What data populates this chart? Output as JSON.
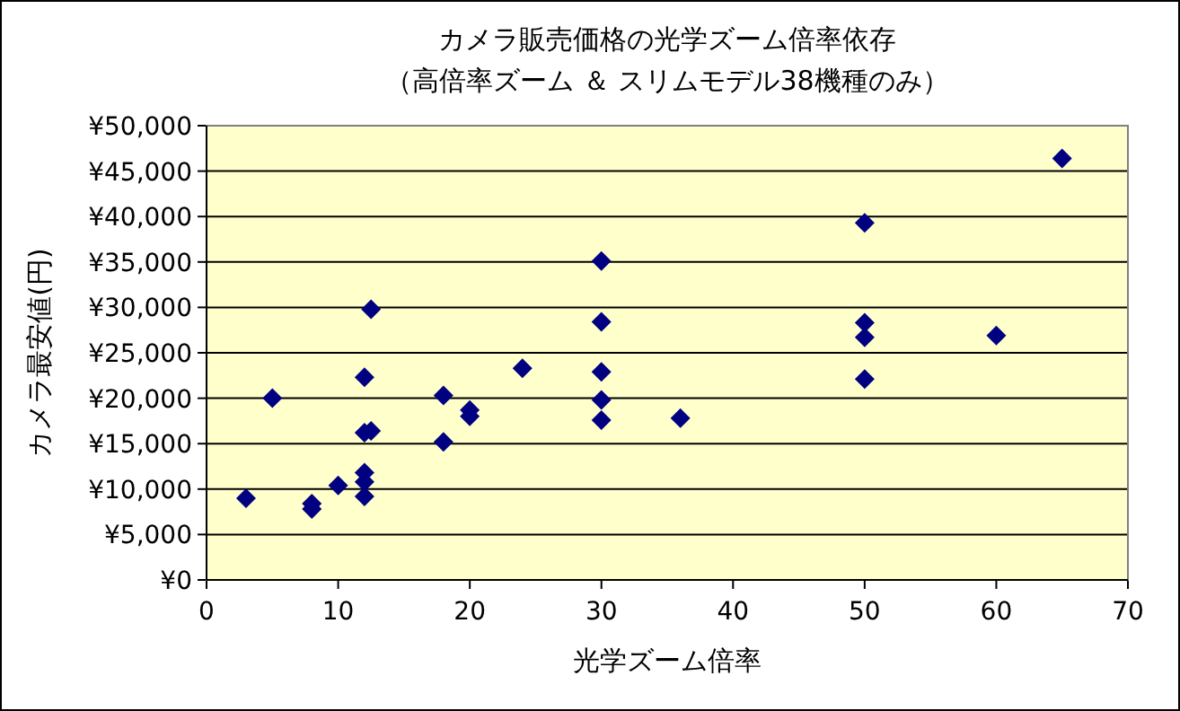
{
  "chart_data": {
    "type": "scatter",
    "title": "カメラ販売価格の光学ズーム倍率依存",
    "subtitle": "（高倍率ズーム ＆ スリムモデル38機種のみ）",
    "xlabel": "光学ズーム倍率",
    "ylabel": "カメラ最安値(円)",
    "x": [
      3,
      5,
      8,
      8,
      10,
      12,
      12,
      12,
      12,
      12.5,
      12,
      12.5,
      18,
      18,
      20,
      20,
      24,
      30,
      30,
      30,
      30,
      30,
      36,
      50,
      50,
      50,
      50,
      60,
      65
    ],
    "values": [
      9000,
      20000,
      8400,
      7800,
      10400,
      11800,
      10800,
      9200,
      16200,
      16400,
      22300,
      29800,
      20300,
      15200,
      18700,
      18000,
      23300,
      35100,
      28400,
      22900,
      19800,
      17600,
      17800,
      39300,
      28300,
      26700,
      22100,
      26900,
      46400
    ],
    "color": "#000080",
    "marker": "diamond",
    "grid": "y",
    "xlim": [
      0,
      70
    ],
    "xticks": [
      0,
      10,
      20,
      30,
      40,
      50,
      60,
      70
    ],
    "ylim": [
      0,
      50000
    ],
    "yticks": [
      {
        "value": 0,
        "label": "¥0"
      },
      {
        "value": 5000,
        "label": "¥5,000"
      },
      {
        "value": 10000,
        "label": "¥10,000"
      },
      {
        "value": 15000,
        "label": "¥15,000"
      },
      {
        "value": 20000,
        "label": "¥20,000"
      },
      {
        "value": 25000,
        "label": "¥25,000"
      },
      {
        "value": 30000,
        "label": "¥30,000"
      },
      {
        "value": 35000,
        "label": "¥35,000"
      },
      {
        "value": 40000,
        "label": "¥40,000"
      },
      {
        "value": 45000,
        "label": "¥45,000"
      },
      {
        "value": 50000,
        "label": "¥50,000"
      }
    ]
  }
}
